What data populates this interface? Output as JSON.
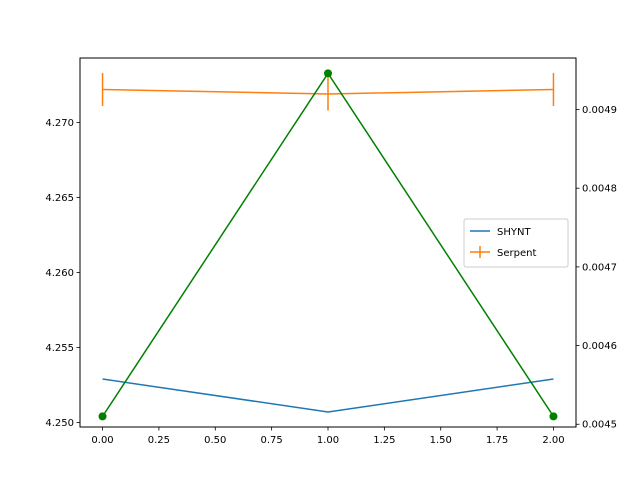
{
  "chart_data": {
    "type": "line",
    "title": "",
    "xlabel": "",
    "ylabel": "",
    "x": [
      0,
      1,
      2
    ],
    "xlim": [
      -0.1,
      2.1
    ],
    "ylim": [
      4.2497,
      4.2743
    ],
    "ylim_right": [
      0.0044965,
      0.0049655
    ],
    "x_ticks": [
      "0.00",
      "0.25",
      "0.50",
      "0.75",
      "1.00",
      "1.25",
      "1.50",
      "1.75",
      "2.00"
    ],
    "y_ticks": [
      "4.250",
      "4.255",
      "4.260",
      "4.265",
      "4.270"
    ],
    "y_ticks_right": [
      "0.0045",
      "0.0046",
      "0.0047",
      "0.0048",
      "0.0049"
    ],
    "series": [
      {
        "name": "SHYNT",
        "axis": "left",
        "color": "#1f77b4",
        "values": [
          4.2529,
          4.2507,
          4.2529
        ]
      },
      {
        "name": "Serpent",
        "axis": "left",
        "color": "#ff7f0e",
        "values": [
          4.2722,
          4.2719,
          4.2722
        ],
        "yerr": [
          0.0011,
          0.0011,
          0.0011
        ]
      },
      {
        "axis": "right",
        "color": "#008000",
        "marker": "circle",
        "values": [
          0.00451,
          0.004946,
          0.00451
        ]
      }
    ],
    "legend": {
      "position": "center-right",
      "entries": [
        "SHYNT",
        "Serpent"
      ]
    },
    "grid": false
  }
}
